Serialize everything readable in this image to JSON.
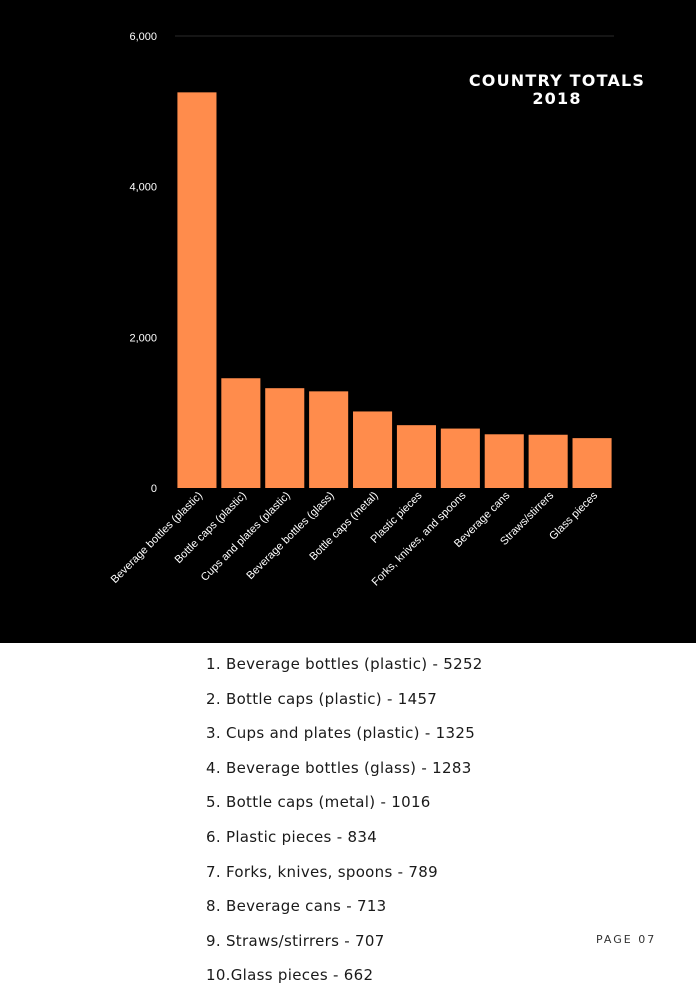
{
  "chart_data": {
    "type": "bar",
    "title": [
      "COUNTRY TOTALS",
      "2018"
    ],
    "categories": [
      "Beverage bottles (plastic)",
      "Bottle caps (plastic)",
      "Cups and plates (plastic)",
      "Beverage bottles (glass)",
      "Bottle caps (metal)",
      "Plastic pieces",
      "Forks, knives, and spoons",
      "Beverage cans",
      "Straws/stirrers",
      "Glass pieces"
    ],
    "values": [
      5252,
      1457,
      1325,
      1283,
      1016,
      834,
      789,
      713,
      707,
      662
    ],
    "ylim": [
      0,
      6000
    ],
    "yticks": [
      0,
      2000,
      4000,
      6000
    ],
    "ytick_labels": [
      "0",
      "2,000",
      "4,000",
      "6,000"
    ],
    "xlabel": "",
    "ylabel": "",
    "grid": false,
    "bar_color": "#ff8c4c",
    "background": "#000000",
    "text_color": "#ffffff"
  },
  "ranking": [
    "1. Beverage bottles (plastic) - 5252",
    "2. Bottle caps (plastic) - 1457",
    "3. Cups and plates (plastic) - 1325",
    "4. Beverage bottles (glass) - 1283",
    "5. Bottle caps (metal) - 1016",
    "6. Plastic pieces - 834",
    "7. Forks, knives, spoons - 789",
    "8. Beverage cans - 713",
    "9. Straws/stirrers - 707",
    "10.Glass pieces - 662"
  ],
  "page_label": "PAGE 07"
}
